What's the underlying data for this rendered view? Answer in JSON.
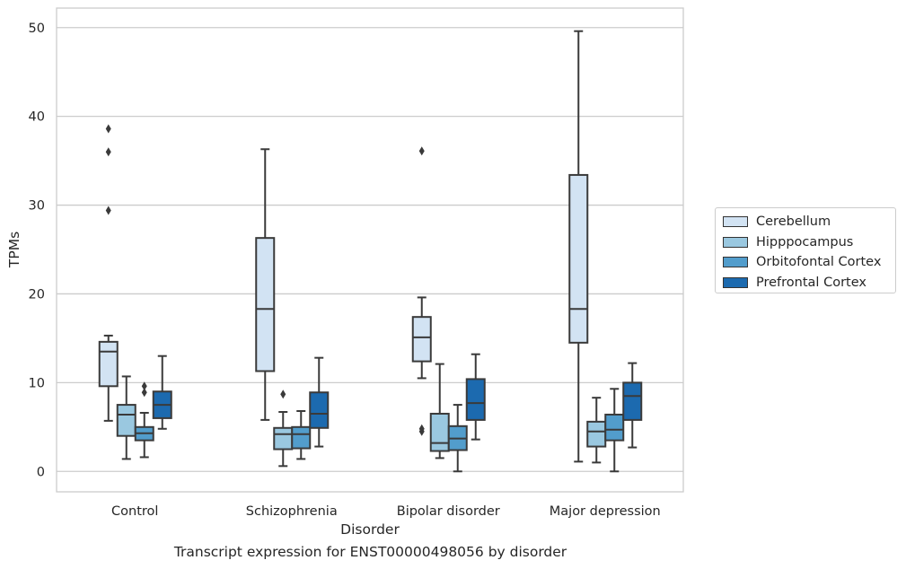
{
  "chart_data": {
    "type": "box",
    "xlabel": "Disorder",
    "ylabel": "TPMs",
    "caption": "Transcript expression for ENST00000498056 by disorder",
    "ylim": [
      -2.3,
      52.2
    ],
    "yticks": [
      0,
      10,
      20,
      30,
      40,
      50
    ],
    "grid": true,
    "legend_position": "right",
    "categories": [
      "Control",
      "Schizophrenia",
      "Bipolar disorder",
      "Major depression"
    ],
    "series": [
      {
        "name": "Cerebellum",
        "color": "#d2e3f3",
        "boxes": [
          {
            "whisker_low": 5.7,
            "q1": 9.6,
            "median": 13.5,
            "q3": 14.6,
            "whisker_high": 15.3,
            "outliers": [
              29.4,
              36.0,
              38.6
            ]
          },
          {
            "whisker_low": 5.8,
            "q1": 11.3,
            "median": 18.3,
            "q3": 26.3,
            "whisker_high": 36.3,
            "outliers": []
          },
          {
            "whisker_low": 10.5,
            "q1": 12.4,
            "median": 15.1,
            "q3": 17.4,
            "whisker_high": 19.6,
            "outliers": [
              4.5,
              4.8,
              36.1
            ]
          },
          {
            "whisker_low": 1.1,
            "q1": 14.5,
            "median": 18.3,
            "q3": 33.4,
            "whisker_high": 49.6,
            "outliers": []
          }
        ]
      },
      {
        "name": "Hipppocampus",
        "color": "#9ac8e0",
        "boxes": [
          {
            "whisker_low": 1.4,
            "q1": 4.0,
            "median": 6.4,
            "q3": 7.5,
            "whisker_high": 10.7,
            "outliers": []
          },
          {
            "whisker_low": 0.6,
            "q1": 2.5,
            "median": 4.2,
            "q3": 4.9,
            "whisker_high": 6.7,
            "outliers": [
              8.7
            ]
          },
          {
            "whisker_low": 1.5,
            "q1": 2.3,
            "median": 3.2,
            "q3": 6.5,
            "whisker_high": 12.1,
            "outliers": []
          },
          {
            "whisker_low": 1.0,
            "q1": 2.8,
            "median": 4.5,
            "q3": 5.6,
            "whisker_high": 8.3,
            "outliers": []
          }
        ]
      },
      {
        "name": "Orbitofontal Cortex",
        "color": "#529dcc",
        "boxes": [
          {
            "whisker_low": 1.6,
            "q1": 3.5,
            "median": 4.3,
            "q3": 5.0,
            "whisker_high": 6.6,
            "outliers": [
              8.9,
              9.6
            ]
          },
          {
            "whisker_low": 1.4,
            "q1": 2.6,
            "median": 4.2,
            "q3": 5.0,
            "whisker_high": 6.8,
            "outliers": []
          },
          {
            "whisker_low": 0.0,
            "q1": 2.4,
            "median": 3.7,
            "q3": 5.1,
            "whisker_high": 7.5,
            "outliers": []
          },
          {
            "whisker_low": 0.0,
            "q1": 3.5,
            "median": 4.7,
            "q3": 6.4,
            "whisker_high": 9.3,
            "outliers": []
          }
        ]
      },
      {
        "name": "Prefrontal Cortex",
        "color": "#1c6aaf",
        "boxes": [
          {
            "whisker_low": 4.8,
            "q1": 6.0,
            "median": 7.5,
            "q3": 9.0,
            "whisker_high": 13.0,
            "outliers": []
          },
          {
            "whisker_low": 2.8,
            "q1": 4.9,
            "median": 6.5,
            "q3": 8.9,
            "whisker_high": 12.8,
            "outliers": []
          },
          {
            "whisker_low": 3.6,
            "q1": 5.8,
            "median": 7.7,
            "q3": 10.4,
            "whisker_high": 13.2,
            "outliers": []
          },
          {
            "whisker_low": 2.7,
            "q1": 5.8,
            "median": 8.5,
            "q3": 10.0,
            "whisker_high": 12.2,
            "outliers": []
          }
        ]
      }
    ]
  }
}
